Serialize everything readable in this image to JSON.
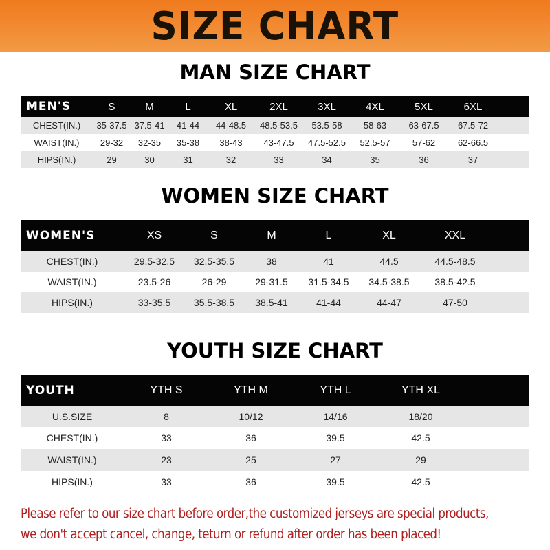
{
  "banner_title": "SIZE CHART",
  "men": {
    "title": "MAN SIZE CHART",
    "header": [
      "MEN'S",
      "S",
      "M",
      "L",
      "XL",
      "2XL",
      "3XL",
      "4XL",
      "5XL",
      "6XL"
    ],
    "rows": [
      [
        "CHEST(IN.)",
        "35-37.5",
        "37.5-41",
        "41-44",
        "44-48.5",
        "48.5-53.5",
        "53.5-58",
        "58-63",
        "63-67.5",
        "67.5-72"
      ],
      [
        "WAIST(IN.)",
        "29-32",
        "32-35",
        "35-38",
        "38-43",
        "43-47.5",
        "47.5-52.5",
        "52.5-57",
        "57-62",
        "62-66.5"
      ],
      [
        "HIPS(IN.)",
        "29",
        "30",
        "31",
        "32",
        "33",
        "34",
        "35",
        "36",
        "37"
      ]
    ]
  },
  "women": {
    "title": "WOMEN SIZE CHART",
    "header": [
      "WOMEN'S",
      "XS",
      "S",
      "M",
      "L",
      "XL",
      "XXL"
    ],
    "rows": [
      [
        "CHEST(IN.)",
        "29.5-32.5",
        "32.5-35.5",
        "38",
        "41",
        "44.5",
        "44.5-48.5"
      ],
      [
        "WAIST(IN.)",
        "23.5-26",
        "26-29",
        "29-31.5",
        "31.5-34.5",
        "34.5-38.5",
        "38.5-42.5"
      ],
      [
        "HIPS(IN.)",
        "33-35.5",
        "35.5-38.5",
        "38.5-41",
        "41-44",
        "44-47",
        "47-50"
      ]
    ]
  },
  "youth": {
    "title": "YOUTH SIZE CHART",
    "header": [
      "YOUTH",
      "YTH S",
      "YTH M",
      "YTH L",
      "YTH XL"
    ],
    "rows": [
      [
        "U.S.SIZE",
        "8",
        "10/12",
        "14/16",
        "18/20"
      ],
      [
        "CHEST(IN.)",
        "33",
        "36",
        "39.5",
        "42.5"
      ],
      [
        "WAIST(IN.)",
        "23",
        "25",
        "27",
        "29"
      ],
      [
        "HIPS(IN.)",
        "33",
        "36",
        "39.5",
        "42.5"
      ]
    ]
  },
  "note": [
    "Please refer to our size chart before order,the customized jerseys are special products,",
    "we don't accept cancel, change, teturn or refund after order has been placed!"
  ],
  "colors": {
    "banner": "#f07a1e",
    "header_bg": "#050505",
    "row_gray": "#e6e6e6",
    "note": "#b02020"
  }
}
